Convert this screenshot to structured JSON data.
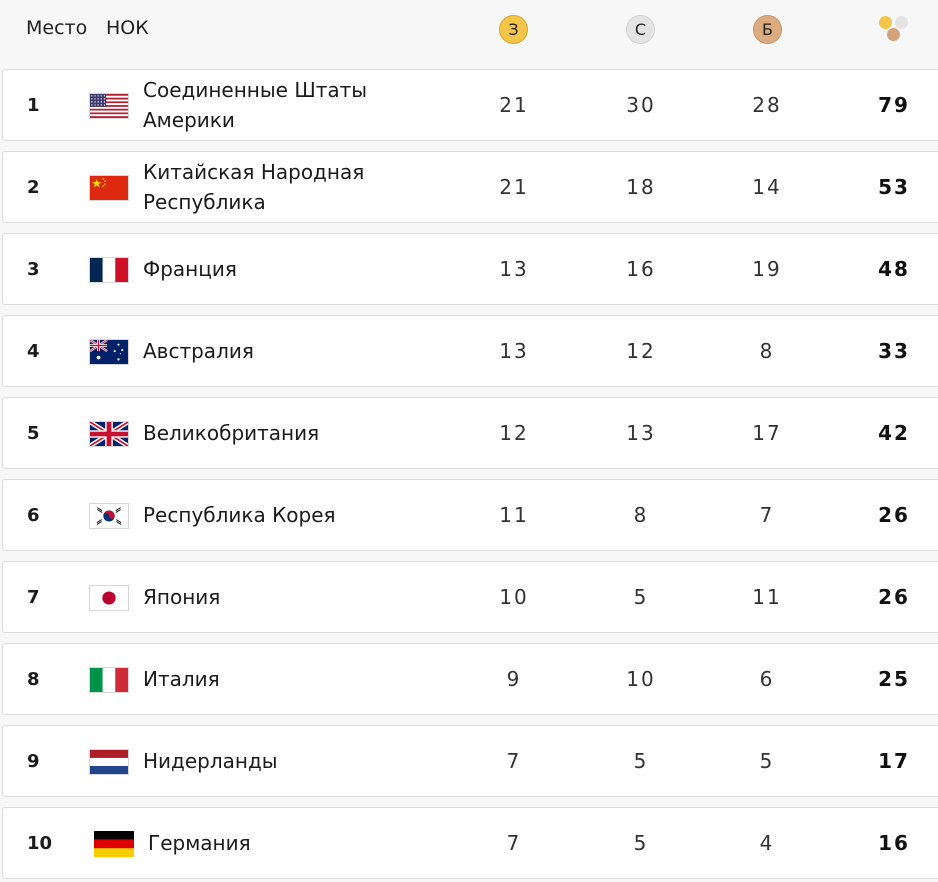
{
  "header": {
    "place_label": "Место",
    "noc_label": "НОК",
    "gold_label": "З",
    "silver_label": "С",
    "bronze_label": "Б",
    "total_icon": "medals-total-icon"
  },
  "colors": {
    "gold": "#f4c54a",
    "silver": "#e4e4e4",
    "bronze": "#ddab80"
  },
  "rows": [
    {
      "rank": "1",
      "country": "Соединенные Штаты Америки",
      "flag": "usa-flag-icon",
      "gold": "21",
      "silver": "30",
      "bronze": "28",
      "total": "79"
    },
    {
      "rank": "2",
      "country": "Китайская Народная Республика",
      "flag": "china-flag-icon",
      "gold": "21",
      "silver": "18",
      "bronze": "14",
      "total": "53"
    },
    {
      "rank": "3",
      "country": "Франция",
      "flag": "france-flag-icon",
      "gold": "13",
      "silver": "16",
      "bronze": "19",
      "total": "48"
    },
    {
      "rank": "4",
      "country": "Австралия",
      "flag": "australia-flag-icon",
      "gold": "13",
      "silver": "12",
      "bronze": "8",
      "total": "33"
    },
    {
      "rank": "5",
      "country": "Великобритания",
      "flag": "uk-flag-icon",
      "gold": "12",
      "silver": "13",
      "bronze": "17",
      "total": "42"
    },
    {
      "rank": "6",
      "country": "Республика Корея",
      "flag": "korea-flag-icon",
      "gold": "11",
      "silver": "8",
      "bronze": "7",
      "total": "26"
    },
    {
      "rank": "7",
      "country": "Япония",
      "flag": "japan-flag-icon",
      "gold": "10",
      "silver": "5",
      "bronze": "11",
      "total": "26"
    },
    {
      "rank": "8",
      "country": "Италия",
      "flag": "italy-flag-icon",
      "gold": "9",
      "silver": "10",
      "bronze": "6",
      "total": "25"
    },
    {
      "rank": "9",
      "country": "Нидерланды",
      "flag": "netherlands-flag-icon",
      "gold": "7",
      "silver": "5",
      "bronze": "5",
      "total": "17"
    },
    {
      "rank": "10",
      "country": "Германия",
      "flag": "germany-flag-icon",
      "gold": "7",
      "silver": "5",
      "bronze": "4",
      "total": "16"
    }
  ]
}
